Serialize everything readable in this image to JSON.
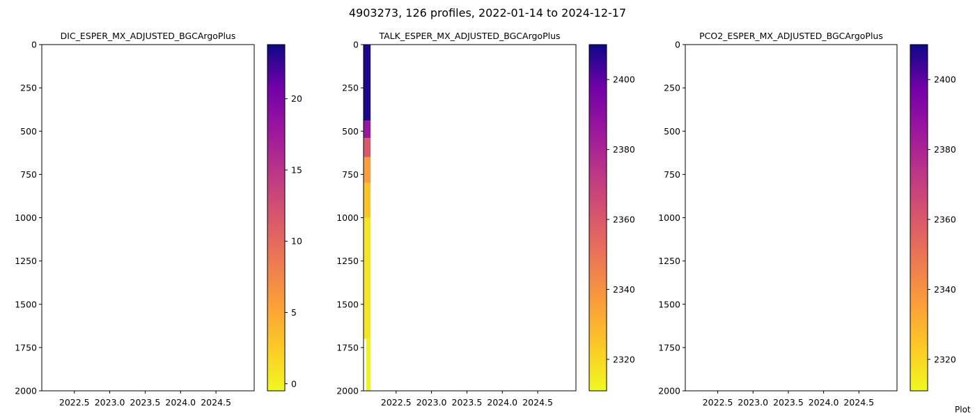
{
  "figure": {
    "suptitle": "4903273, 126 profiles, 2022-01-14 to 2024-12-17",
    "credit": "Plot"
  },
  "chart_data": [
    {
      "type": "heatmap",
      "title": "DIC_ESPER_MX_ADJUSTED_BGCArgoPlus",
      "xlabel": "",
      "ylabel": "",
      "x_ticks": [
        "2022.5",
        "2023.0",
        "2023.5",
        "2024.0",
        "2024.5"
      ],
      "x_tick_values": [
        2022.5,
        2023.0,
        2023.5,
        2024.0,
        2024.5
      ],
      "xlim": [
        2022.04,
        2025.04
      ],
      "y_ticks": [
        "0",
        "250",
        "500",
        "750",
        "1000",
        "1250",
        "1500",
        "1750",
        "2000"
      ],
      "y_tick_values": [
        0,
        250,
        500,
        750,
        1000,
        1250,
        1500,
        1750,
        2000
      ],
      "ylim": [
        2000,
        0
      ],
      "y_inverted": true,
      "colormap": "plasma_r",
      "colorbar": {
        "ticks": [
          "0",
          "5",
          "10",
          "15",
          "20"
        ],
        "tick_values": [
          0,
          5,
          10,
          15,
          20
        ],
        "range": [
          -0.5,
          23.8
        ]
      },
      "cells": []
    },
    {
      "type": "heatmap",
      "title": "TALK_ESPER_MX_ADJUSTED_BGCArgoPlus",
      "xlabel": "",
      "ylabel": "",
      "x_ticks": [
        "2022.5",
        "2023.0",
        "2023.5",
        "2024.0",
        "2024.5"
      ],
      "x_tick_values": [
        2022.5,
        2023.0,
        2023.5,
        2024.0,
        2024.5
      ],
      "xlim": [
        2022.04,
        2025.04
      ],
      "y_ticks": [
        "0",
        "250",
        "500",
        "750",
        "1000",
        "1250",
        "1500",
        "1750",
        "2000"
      ],
      "y_tick_values": [
        0,
        250,
        500,
        750,
        1000,
        1250,
        1500,
        1750,
        2000
      ],
      "ylim": [
        2000,
        0
      ],
      "y_inverted": true,
      "colormap": "plasma_r",
      "colorbar": {
        "ticks": [
          "2320",
          "2340",
          "2360",
          "2380",
          "2400"
        ],
        "tick_values": [
          2320,
          2340,
          2360,
          2380,
          2400
        ],
        "range": [
          2311,
          2410
        ]
      },
      "cells": [
        {
          "x0": 2022.04,
          "x1": 2022.14,
          "depth0": 0,
          "depth1": 440,
          "value": 2408
        },
        {
          "x0": 2022.04,
          "x1": 2022.14,
          "depth0": 440,
          "depth1": 540,
          "value": 2386
        },
        {
          "x0": 2022.04,
          "x1": 2022.14,
          "depth0": 540,
          "depth1": 650,
          "value": 2360
        },
        {
          "x0": 2022.04,
          "x1": 2022.14,
          "depth0": 650,
          "depth1": 800,
          "value": 2336
        },
        {
          "x0": 2022.04,
          "x1": 2022.14,
          "depth0": 800,
          "depth1": 1000,
          "value": 2325
        },
        {
          "x0": 2022.04,
          "x1": 2022.14,
          "depth0": 1000,
          "depth1": 1700,
          "value": 2316
        },
        {
          "x0": 2022.08,
          "x1": 2022.14,
          "depth0": 1700,
          "depth1": 2000,
          "value": 2313
        }
      ]
    },
    {
      "type": "heatmap",
      "title": "PCO2_ESPER_MX_ADJUSTED_BGCArgoPlus",
      "xlabel": "",
      "ylabel": "",
      "x_ticks": [
        "2022.5",
        "2023.0",
        "2023.5",
        "2024.0",
        "2024.5"
      ],
      "x_tick_values": [
        2022.5,
        2023.0,
        2023.5,
        2024.0,
        2024.5
      ],
      "xlim": [
        2022.04,
        2025.04
      ],
      "y_ticks": [
        "0",
        "250",
        "500",
        "750",
        "1000",
        "1250",
        "1500",
        "1750",
        "2000"
      ],
      "y_tick_values": [
        0,
        250,
        500,
        750,
        1000,
        1250,
        1500,
        1750,
        2000
      ],
      "ylim": [
        2000,
        0
      ],
      "y_inverted": true,
      "colormap": "plasma_r",
      "colorbar": {
        "ticks": [
          "2320",
          "2340",
          "2360",
          "2380",
          "2400"
        ],
        "tick_values": [
          2320,
          2340,
          2360,
          2380,
          2400
        ],
        "range": [
          2311,
          2410
        ]
      },
      "cells": []
    }
  ]
}
